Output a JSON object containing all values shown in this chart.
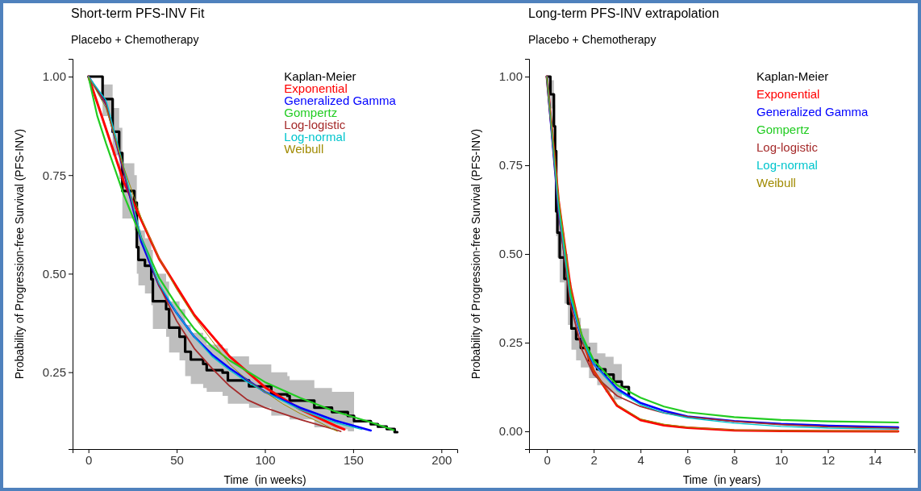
{
  "chart_data": [
    {
      "type": "line",
      "title": "Short-term PFS-INV Fit",
      "subtitle": "Placebo + Chemotherapy",
      "xlabel": "Time  (in weeks)",
      "ylabel": "Probability of Progression-free Survival (PFS-INV)",
      "xlim": [
        -9,
        209
      ],
      "ylim": [
        0.055,
        1.045
      ],
      "xticks": [
        0,
        50,
        100,
        150,
        200
      ],
      "yticks": [
        {
          "value": 0.25,
          "label": "0.25"
        },
        {
          "value": 0.5,
          "label": "0.50"
        },
        {
          "value": 0.75,
          "label": "0.75"
        },
        {
          "value": 1,
          "label": "1.00"
        }
      ],
      "legend": "top right",
      "grid": false,
      "series": [
        {
          "name": "Kaplan-Meier",
          "type": "step",
          "color": "#000000",
          "x": [
            0,
            8,
            13.7,
            17.4,
            19.2,
            26,
            27.4,
            28.3,
            32,
            35.6,
            36.5,
            44,
            45.7,
            51.6,
            54.8,
            58,
            65,
            67,
            76,
            79,
            88,
            91,
            103.6,
            112.7,
            114,
            128,
            138,
            147,
            150.5,
            160,
            164,
            169,
            173.5,
            175
          ],
          "values": [
            1,
            0.943,
            0.86,
            0.806,
            0.71,
            0.68,
            0.567,
            0.535,
            0.52,
            0.486,
            0.43,
            0.41,
            0.363,
            0.34,
            0.302,
            0.282,
            0.271,
            0.255,
            0.249,
            0.229,
            0.229,
            0.214,
            0.194,
            0.19,
            0.178,
            0.16,
            0.149,
            0.139,
            0.126,
            0.118,
            0.112,
            0.106,
            0.098,
            0.098
          ],
          "lower": [
            1,
            0.9,
            0.8,
            0.74,
            0.64,
            0.61,
            0.5,
            0.47,
            0.45,
            0.42,
            0.36,
            0.34,
            0.3,
            0.28,
            0.24,
            0.22,
            0.21,
            0.2,
            0.19,
            0.17,
            0.17,
            0.16,
            0.14,
            0.14,
            0.13,
            0.11,
            0.105,
            0.1,
            0.1,
            null,
            null,
            null,
            null,
            null
          ],
          "upper": [
            1,
            0.98,
            0.92,
            0.87,
            0.78,
            0.75,
            0.64,
            0.61,
            0.59,
            0.56,
            0.5,
            0.48,
            0.43,
            0.41,
            0.37,
            0.35,
            0.34,
            0.32,
            0.31,
            0.29,
            0.29,
            0.27,
            0.25,
            0.24,
            0.23,
            0.21,
            0.2,
            0.2,
            0.2,
            null,
            null,
            null,
            null,
            null
          ]
        },
        {
          "name": "Exponential",
          "color": "#ff0000",
          "x": [
            0,
            20,
            40,
            60,
            80,
            100,
            120,
            140,
            145
          ],
          "values": [
            1,
            0.733,
            0.538,
            0.395,
            0.29,
            0.212,
            0.156,
            0.114,
            0.105
          ]
        },
        {
          "name": "Generalized Gamma",
          "color": "#0000ff",
          "x": [
            0,
            10,
            20,
            30,
            40,
            50,
            60,
            70,
            80,
            90,
            100,
            120,
            140,
            160
          ],
          "values": [
            1,
            0.93,
            0.76,
            0.58,
            0.47,
            0.4,
            0.34,
            0.295,
            0.26,
            0.23,
            0.2,
            0.16,
            0.127,
            0.102
          ]
        },
        {
          "name": "Gompertz",
          "color": "#22cc22",
          "x": [
            0,
            5,
            10,
            20,
            30,
            40,
            50,
            60,
            70,
            80,
            100,
            120,
            140,
            160,
            173
          ],
          "values": [
            1,
            0.9,
            0.83,
            0.7,
            0.59,
            0.49,
            0.42,
            0.36,
            0.315,
            0.28,
            0.225,
            0.185,
            0.15,
            0.123,
            0.103
          ]
        },
        {
          "name": "Log-logistic",
          "color": "#a52a2a",
          "x": [
            0,
            10,
            20,
            30,
            40,
            50,
            60,
            70,
            80,
            90,
            100,
            120,
            143
          ],
          "values": [
            1,
            0.93,
            0.76,
            0.59,
            0.47,
            0.38,
            0.31,
            0.26,
            0.215,
            0.18,
            0.16,
            0.13,
            0.1
          ]
        },
        {
          "name": "Log-normal",
          "color": "#00c5cd",
          "x": [
            0,
            10,
            20,
            30,
            40,
            50,
            60,
            70,
            80,
            90,
            100,
            120,
            140,
            155
          ],
          "values": [
            1,
            0.94,
            0.77,
            0.59,
            0.475,
            0.4,
            0.34,
            0.29,
            0.255,
            0.225,
            0.2,
            0.155,
            0.122,
            0.105
          ]
        },
        {
          "name": "Weibull",
          "color": "#a08a00",
          "x": [
            0,
            10,
            20,
            30,
            40,
            50,
            60,
            70,
            80,
            90,
            100,
            110,
            120,
            130,
            141
          ],
          "values": [
            1,
            0.92,
            0.77,
            0.64,
            0.54,
            0.46,
            0.39,
            0.33,
            0.27,
            0.23,
            0.2,
            0.17,
            0.145,
            0.125,
            0.1
          ]
        }
      ]
    },
    {
      "type": "line",
      "title": "Long-term PFS-INV extrapolation",
      "subtitle": "Placebo + Chemotherapy",
      "xlabel": "Time  (in years)",
      "ylabel": "Probability of Progression-free Survival (PFS-INV)",
      "xlim": [
        -0.76,
        15.7
      ],
      "ylim": [
        -0.05,
        1.05
      ],
      "xticks": [
        0,
        2,
        4,
        6,
        8,
        10,
        12,
        14
      ],
      "yticks": [
        {
          "value": 0,
          "label": "0.00"
        },
        {
          "value": 0.25,
          "label": "0.25"
        },
        {
          "value": 0.5,
          "label": "0.50"
        },
        {
          "value": 0.75,
          "label": "0.75"
        },
        {
          "value": 1,
          "label": "1.00"
        }
      ],
      "legend": "top right",
      "grid": false,
      "series": [
        {
          "name": "Kaplan-Meier",
          "type": "step",
          "color": "#000000",
          "x": [
            0,
            0.15,
            0.3,
            0.35,
            0.4,
            0.45,
            0.55,
            0.75,
            0.9,
            1.05,
            1.25,
            1.45,
            1.8,
            2.15,
            2.5,
            2.85,
            3.2,
            3.5
          ],
          "values": [
            1,
            0.95,
            0.86,
            0.79,
            0.62,
            0.56,
            0.49,
            0.43,
            0.36,
            0.29,
            0.26,
            0.235,
            0.2,
            0.175,
            0.16,
            0.14,
            0.125,
            0.1
          ],
          "lower": [
            1,
            0.91,
            0.8,
            0.72,
            0.55,
            0.49,
            0.42,
            0.36,
            0.3,
            0.23,
            0.2,
            0.18,
            0.15,
            0.13,
            0.11,
            0.09,
            0.08,
            null
          ],
          "upper": [
            1,
            0.99,
            0.92,
            0.85,
            0.69,
            0.63,
            0.56,
            0.5,
            0.42,
            0.35,
            0.32,
            0.29,
            0.25,
            0.22,
            0.21,
            0.19,
            0.17,
            null
          ]
        },
        {
          "name": "Exponential",
          "color": "#ff0000",
          "x": [
            0,
            0.5,
            1,
            1.5,
            2,
            3,
            4,
            5,
            6,
            8,
            10,
            15
          ],
          "values": [
            1,
            0.65,
            0.41,
            0.26,
            0.17,
            0.072,
            0.032,
            0.017,
            0.01,
            0.003,
            0.001,
            0
          ]
        },
        {
          "name": "Generalized Gamma",
          "color": "#0000ff",
          "x": [
            0,
            0.5,
            1,
            1.5,
            2,
            3,
            4,
            5,
            6,
            8,
            10,
            12,
            15
          ],
          "values": [
            1,
            0.62,
            0.38,
            0.26,
            0.19,
            0.12,
            0.08,
            0.058,
            0.042,
            0.029,
            0.021,
            0.016,
            0.011
          ]
        },
        {
          "name": "Gompertz",
          "color": "#22cc22",
          "x": [
            0,
            0.5,
            1,
            1.5,
            2,
            3,
            4,
            5,
            6,
            8,
            10,
            12,
            15
          ],
          "values": [
            1,
            0.64,
            0.39,
            0.27,
            0.2,
            0.13,
            0.095,
            0.07,
            0.054,
            0.04,
            0.032,
            0.028,
            0.025
          ]
        },
        {
          "name": "Log-logistic",
          "color": "#a52a2a",
          "x": [
            0,
            0.5,
            1,
            1.5,
            2,
            3,
            4,
            5,
            6,
            8,
            10,
            12,
            15
          ],
          "values": [
            1,
            0.62,
            0.36,
            0.23,
            0.16,
            0.1,
            0.07,
            0.052,
            0.041,
            0.028,
            0.019,
            0.013,
            0.009
          ]
        },
        {
          "name": "Log-normal",
          "color": "#00c5cd",
          "x": [
            0,
            0.5,
            1,
            1.5,
            2,
            3,
            4,
            5,
            6,
            8,
            10,
            12,
            15
          ],
          "values": [
            1,
            0.63,
            0.38,
            0.26,
            0.19,
            0.115,
            0.075,
            0.052,
            0.038,
            0.023,
            0.014,
            0.009,
            0.006
          ]
        },
        {
          "name": "Weibull",
          "color": "#a08a00",
          "x": [
            0,
            0.5,
            1,
            1.5,
            2,
            3,
            4,
            5,
            6,
            8,
            10,
            15
          ],
          "values": [
            1,
            0.66,
            0.41,
            0.26,
            0.17,
            0.075,
            0.035,
            0.02,
            0.012,
            0.004,
            0.002,
            0
          ]
        }
      ]
    }
  ]
}
